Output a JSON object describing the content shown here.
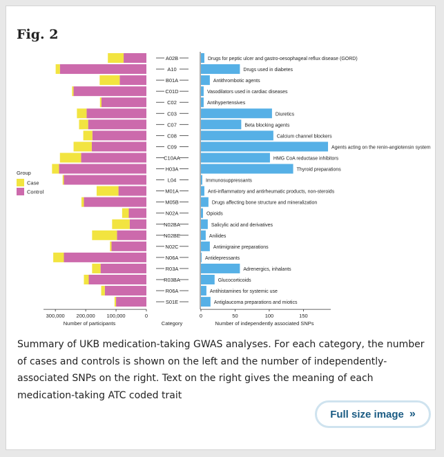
{
  "figure": {
    "title": "Fig. 2",
    "caption": "Summary of UKB medication-taking GWAS analyses. For each category, the number of cases and controls is shown on the left and the number of independently-associated SNPs on the right. Text on the right gives the meaning of each medication-taking ATC coded trait",
    "full_size_label": "Full size image",
    "full_size_arrow": "»"
  },
  "chart_data": {
    "type": "bar",
    "title": "",
    "category_axis_label": "Category",
    "colors": {
      "case": "#f2e440",
      "control": "#cc6aac",
      "snps": "#56b0e6"
    },
    "left_panel": {
      "type": "stacked-horizontal-bar",
      "xlabel": "Number of participants",
      "xlim": [
        0,
        330000
      ],
      "ticks": [
        0,
        100000,
        200000,
        300000
      ],
      "tick_labels": [
        "0",
        "100,000",
        "200,000",
        "300,000"
      ],
      "legend": {
        "title": "Group",
        "items": [
          "Case",
          "Control"
        ],
        "placement": "left"
      },
      "series": [
        {
          "name": "Control",
          "values": [
            75000,
            285000,
            88000,
            240000,
            148000,
            197000,
            192000,
            178000,
            180000,
            215000,
            288000,
            272000,
            92000,
            206000,
            58000,
            55000,
            97000,
            115000,
            272000,
            151000,
            190000,
            137000,
            100000
          ]
        },
        {
          "name": "Case",
          "values": [
            52000,
            14000,
            66000,
            5000,
            5000,
            32000,
            30000,
            30000,
            60000,
            70000,
            23000,
            4000,
            72000,
            8000,
            22000,
            58000,
            82000,
            5000,
            35000,
            28000,
            16000,
            12000,
            5000
          ]
        }
      ]
    },
    "right_panel": {
      "type": "horizontal-bar",
      "xlabel": "Number of independently associated SNPs",
      "xlim": [
        0,
        190
      ],
      "ticks": [
        0,
        50,
        100,
        150
      ],
      "tick_labels": [
        "0",
        "50",
        "100",
        "150"
      ],
      "values": [
        5,
        57,
        13,
        4,
        4,
        104,
        59,
        106,
        186,
        101,
        135,
        2,
        5,
        11,
        3,
        10,
        7,
        13,
        1,
        57,
        20,
        8,
        14
      ]
    },
    "categories": [
      "A02B",
      "A10",
      "B01A",
      "C01D",
      "C02",
      "C03",
      "C07",
      "C08",
      "C09",
      "C10AA",
      "H03A",
      "L04",
      "M01A",
      "M05B",
      "N02A",
      "N02BA",
      "N02BE",
      "N02C",
      "N06A",
      "R03A",
      "R03BA",
      "R06A",
      "S01E"
    ],
    "descriptions": [
      "Drugs for peptic ulcer and gastro-oesophageal reflux disease (GORD)",
      "Drugs used in diabetes",
      "Antithrombotic agents",
      "Vasodilators used in cardiac diseases",
      "Antihypertensives",
      "Diuretics",
      "Beta blocking agents",
      "Calcium channel blockers",
      "Agents acting on the renin-angiotensin system",
      "HMG CoA reductase inhibitors",
      "Thyroid preparations",
      "Immunosuppressants",
      "Anti-inflammatory and antirheumatic products, non-steroids",
      "Drugs affecting bone structure and mineralization",
      "Opioids",
      "Salicylic acid and derivatives",
      "Anilides",
      "Antimigraine preparations",
      "Antidepressants",
      "Adrenergics, inhalants",
      "Glucocorticoids",
      "Antihistamines for systemic use",
      "Antiglaucoma preparations and miotics"
    ]
  }
}
